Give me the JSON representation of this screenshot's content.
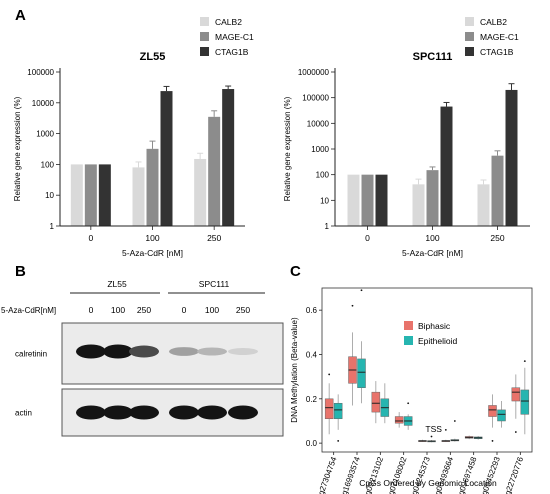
{
  "panels": {
    "a": "A",
    "b": "B",
    "c": "C"
  },
  "colors": {
    "calb2": "#d9d9d9",
    "mage": "#8c8c8c",
    "ctag": "#333333",
    "biphasic": "#e8736b",
    "epithelioid": "#26b5b0"
  },
  "chart_data": [
    {
      "type": "bar",
      "title": "ZL55",
      "xlabel": "5-Aza-CdR [nM]",
      "ylabel": "Relative gene expression (%)",
      "yscale": "log",
      "ylim": [
        1,
        100000
      ],
      "yticks": [
        "1",
        "10",
        "100",
        "1000",
        "10000",
        "100000"
      ],
      "categories": [
        "0",
        "100",
        "250"
      ],
      "legend_position": "top-right",
      "series": [
        {
          "name": "CALB2",
          "values": [
            100,
            80,
            150
          ],
          "errors": [
            0,
            40,
            80
          ]
        },
        {
          "name": "MAGE-C1",
          "values": [
            100,
            320,
            3500
          ],
          "errors": [
            0,
            250,
            2000
          ]
        },
        {
          "name": "CTAG1B",
          "values": [
            100,
            24000,
            28000
          ],
          "errors": [
            0,
            10000,
            7000
          ]
        }
      ]
    },
    {
      "type": "bar",
      "title": "SPC111",
      "xlabel": "5-Aza-CdR [nM]",
      "ylabel": "Relative gene expression (%)",
      "yscale": "log",
      "ylim": [
        1,
        1000000
      ],
      "yticks": [
        "1",
        "10",
        "100",
        "1000",
        "10000",
        "100000",
        "1000000"
      ],
      "categories": [
        "0",
        "100",
        "250"
      ],
      "legend_position": "top-right",
      "series": [
        {
          "name": "CALB2",
          "values": [
            100,
            42,
            42
          ],
          "errors": [
            0,
            25,
            20
          ]
        },
        {
          "name": "MAGE-C1",
          "values": [
            100,
            150,
            550
          ],
          "errors": [
            0,
            50,
            300
          ]
        },
        {
          "name": "CTAG1B",
          "values": [
            100,
            45000,
            200000
          ],
          "errors": [
            0,
            20000,
            150000
          ]
        }
      ]
    },
    {
      "type": "box",
      "xlabel": "CpGs Ordered by Genomic Location",
      "ylabel": "DNA Methylation (Beta-value)",
      "ylim": [
        -0.04,
        0.7
      ],
      "yticks": [
        "0.0",
        "0.2",
        "0.4",
        "0.6"
      ],
      "annotation": "TSS",
      "legend_position": "top-right",
      "series_names": [
        "Biphasic",
        "Epithelioid"
      ],
      "categories": [
        "cg27304754",
        "cg16993574",
        "cg09213102",
        "cg07108002",
        "cg04245373",
        "cg06493664",
        "cg09697458",
        "cg09452293",
        "cg22720776"
      ],
      "boxes": [
        {
          "q1": 0.11,
          "med": 0.16,
          "q3": 0.2,
          "lo": 0.04,
          "hi": 0.27,
          "out": [
            0.31
          ]
        },
        {
          "q1": 0.11,
          "med": 0.15,
          "q3": 0.18,
          "lo": 0.06,
          "hi": 0.22,
          "out": [
            0.01
          ]
        },
        {
          "q1": 0.27,
          "med": 0.33,
          "q3": 0.39,
          "lo": 0.17,
          "hi": 0.5,
          "out": [
            0.62
          ]
        },
        {
          "q1": 0.25,
          "med": 0.32,
          "q3": 0.38,
          "lo": 0.18,
          "hi": 0.46,
          "out": [
            0.69
          ]
        },
        {
          "q1": 0.14,
          "med": 0.18,
          "q3": 0.23,
          "lo": 0.09,
          "hi": 0.28,
          "out": []
        },
        {
          "q1": 0.12,
          "med": 0.16,
          "q3": 0.2,
          "lo": 0.09,
          "hi": 0.27,
          "out": []
        },
        {
          "q1": 0.09,
          "med": 0.1,
          "q3": 0.12,
          "lo": 0.07,
          "hi": 0.14,
          "out": []
        },
        {
          "q1": 0.08,
          "med": 0.1,
          "q3": 0.12,
          "lo": 0.06,
          "hi": 0.13,
          "out": [
            0.18
          ]
        },
        {
          "q1": 0.008,
          "med": 0.01,
          "q3": 0.012,
          "lo": 0.005,
          "hi": 0.015,
          "out": []
        },
        {
          "q1": 0.007,
          "med": 0.009,
          "q3": 0.011,
          "lo": 0.004,
          "hi": 0.014,
          "out": [
            0.03
          ]
        },
        {
          "q1": 0.008,
          "med": 0.01,
          "q3": 0.012,
          "lo": 0.005,
          "hi": 0.015,
          "out": [
            0.06
          ]
        },
        {
          "q1": 0.01,
          "med": 0.013,
          "q3": 0.016,
          "lo": 0.007,
          "hi": 0.02,
          "out": [
            0.1
          ]
        },
        {
          "q1": 0.022,
          "med": 0.026,
          "q3": 0.03,
          "lo": 0.018,
          "hi": 0.034,
          "out": []
        },
        {
          "q1": 0.02,
          "med": 0.024,
          "q3": 0.028,
          "lo": 0.016,
          "hi": 0.032,
          "out": []
        },
        {
          "q1": 0.12,
          "med": 0.15,
          "q3": 0.17,
          "lo": 0.07,
          "hi": 0.22,
          "out": [
            0.01
          ]
        },
        {
          "q1": 0.1,
          "med": 0.13,
          "q3": 0.15,
          "lo": 0.07,
          "hi": 0.19,
          "out": []
        },
        {
          "q1": 0.19,
          "med": 0.23,
          "q3": 0.25,
          "lo": 0.11,
          "hi": 0.31,
          "out": [
            0.05
          ]
        },
        {
          "q1": 0.13,
          "med": 0.19,
          "q3": 0.24,
          "lo": 0.04,
          "hi": 0.34,
          "out": [
            0.37
          ]
        }
      ]
    }
  ],
  "blot": {
    "cells": [
      "ZL55",
      "SPC111"
    ],
    "treatment_label": "5-Aza-CdR[nM]",
    "doses": [
      "0",
      "100",
      "250",
      "0",
      "100",
      "250"
    ],
    "rows": [
      "calretinin",
      "actin"
    ],
    "calretinin_intensity": [
      1.0,
      1.0,
      0.75,
      0.35,
      0.25,
      0.12
    ],
    "actin_intensity": [
      1.0,
      1.0,
      1.0,
      1.0,
      1.0,
      1.0
    ]
  }
}
